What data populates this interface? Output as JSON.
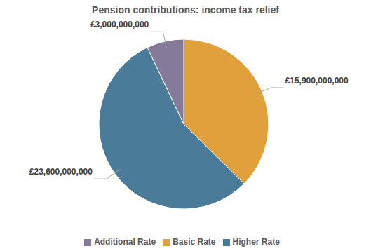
{
  "chart_data": {
    "type": "pie",
    "title": "Pension contributions: income tax relief",
    "categories": [
      "Basic Rate",
      "Higher Rate",
      "Additional Rate"
    ],
    "values": [
      15900000000,
      23600000000,
      3000000000
    ],
    "value_labels": [
      "£15,900,000,000",
      "£23,600,000,000",
      "£3,000,000,000"
    ],
    "colors": [
      "#e0a03c",
      "#4a7c99",
      "#857a9a"
    ],
    "data_labels": true,
    "legend": "bottom"
  }
}
